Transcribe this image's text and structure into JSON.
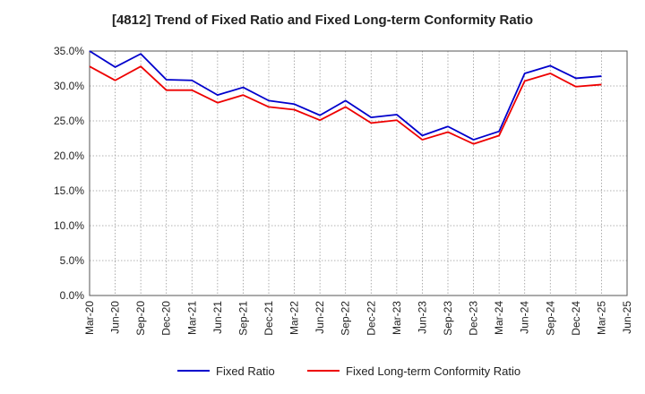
{
  "chart_data": {
    "type": "line",
    "title": "[4812]  Trend of Fixed Ratio and Fixed Long-term Conformity Ratio",
    "xlabel": "",
    "ylabel": "",
    "categories": [
      "Mar-20",
      "Jun-20",
      "Sep-20",
      "Dec-20",
      "Mar-21",
      "Jun-21",
      "Sep-21",
      "Dec-21",
      "Mar-22",
      "Jun-22",
      "Sep-22",
      "Dec-22",
      "Mar-23",
      "Jun-23",
      "Sep-23",
      "Dec-23",
      "Mar-24",
      "Jun-24",
      "Sep-24",
      "Dec-24",
      "Mar-25",
      "Jun-25"
    ],
    "ylim": [
      0,
      35
    ],
    "yticks": [
      0,
      5,
      10,
      15,
      20,
      25,
      30,
      35
    ],
    "ytick_labels": [
      "0.0%",
      "5.0%",
      "10.0%",
      "15.0%",
      "20.0%",
      "25.0%",
      "30.0%",
      "35.0%"
    ],
    "grid": true,
    "legend_position": "bottom",
    "series": [
      {
        "name": "Fixed Ratio",
        "color": "#0000cc",
        "values": [
          35.0,
          32.7,
          34.6,
          30.9,
          30.8,
          28.7,
          29.8,
          27.9,
          27.4,
          25.8,
          27.9,
          25.5,
          25.9,
          22.9,
          24.2,
          22.3,
          23.5,
          31.8,
          32.9,
          31.1,
          31.4,
          null
        ]
      },
      {
        "name": "Fixed Long-term Conformity Ratio",
        "color": "#ee0000",
        "values": [
          32.8,
          30.8,
          32.8,
          29.4,
          29.4,
          27.6,
          28.7,
          27.0,
          26.6,
          25.1,
          27.0,
          24.7,
          25.1,
          22.3,
          23.4,
          21.7,
          22.9,
          30.7,
          31.8,
          29.9,
          30.2,
          null
        ]
      }
    ]
  }
}
